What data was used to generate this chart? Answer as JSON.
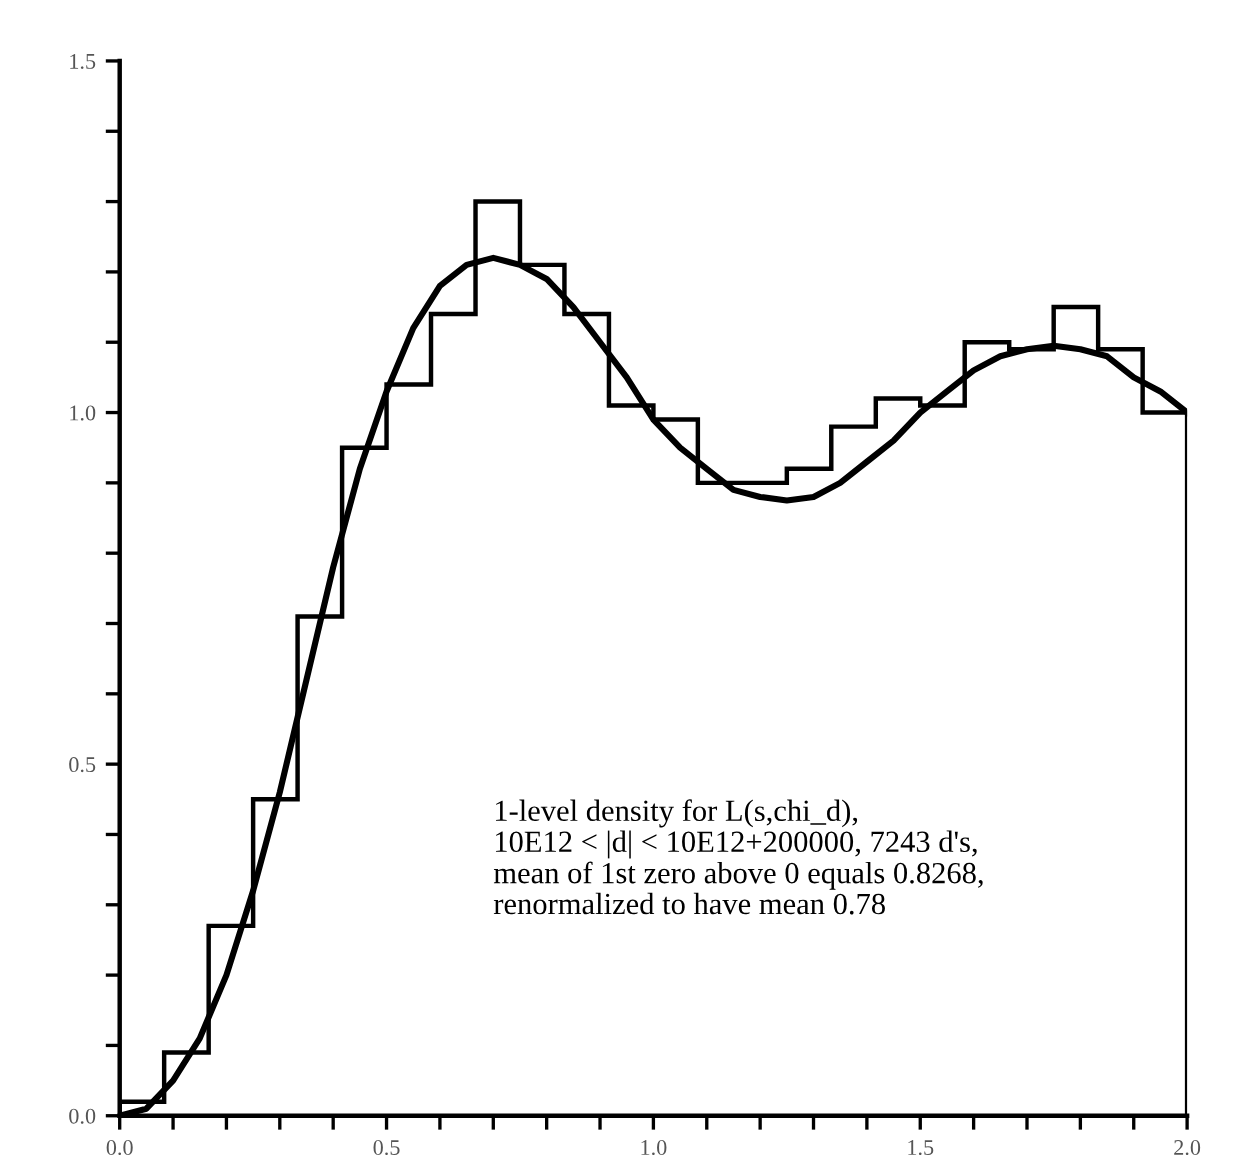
{
  "chart_data": {
    "type": "histogram",
    "bins": [
      0,
      0.0833,
      0.1667,
      0.25,
      0.3333,
      0.4167,
      0.5,
      0.5833,
      0.6667,
      0.75,
      0.8333,
      0.9167,
      1.0,
      1.0833,
      1.1667,
      1.25,
      1.3333,
      1.4167,
      1.5,
      1.5833,
      1.6667,
      1.75,
      1.8333,
      1.9167,
      2.0
    ],
    "values": [
      0.02,
      0.09,
      0.27,
      0.45,
      0.71,
      0.95,
      1.04,
      1.14,
      1.3,
      1.21,
      1.14,
      1.01,
      0.99,
      0.9,
      0.9,
      0.92,
      0.98,
      1.02,
      1.01,
      1.1,
      1.09,
      1.15,
      1.09,
      1.0
    ],
    "color": "#000000",
    "series": [
      {
        "type": "line",
        "color": "#000000",
        "x": [
          0,
          0.05,
          0.1,
          0.15,
          0.2,
          0.25,
          0.3,
          0.35,
          0.4,
          0.45,
          0.5,
          0.55,
          0.6,
          0.65,
          0.7,
          0.75,
          0.8,
          0.85,
          0.9,
          0.95,
          1.0,
          1.05,
          1.1,
          1.15,
          1.2,
          1.25,
          1.3,
          1.35,
          1.4,
          1.45,
          1.5,
          1.55,
          1.6,
          1.65,
          1.7,
          1.75,
          1.8,
          1.85,
          1.9,
          1.95,
          2.0
        ],
        "values": [
          0.0,
          0.01,
          0.05,
          0.11,
          0.2,
          0.32,
          0.46,
          0.62,
          0.78,
          0.92,
          1.03,
          1.12,
          1.18,
          1.21,
          1.22,
          1.21,
          1.19,
          1.15,
          1.1,
          1.05,
          0.99,
          0.95,
          0.92,
          0.89,
          0.88,
          0.875,
          0.88,
          0.9,
          0.93,
          0.96,
          1.0,
          1.03,
          1.06,
          1.08,
          1.09,
          1.095,
          1.09,
          1.08,
          1.05,
          1.03,
          1.0
        ]
      }
    ],
    "xlim": [
      0,
      2.0
    ],
    "ylim": [
      0,
      1.5
    ],
    "xticks": [
      {
        "value": 0,
        "label": "0.0"
      },
      {
        "value": 0.1,
        "label": null
      },
      {
        "value": 0.2,
        "label": null
      },
      {
        "value": 0.3,
        "label": null
      },
      {
        "value": 0.4,
        "label": null
      },
      {
        "value": 0.5,
        "label": "0.5"
      },
      {
        "value": 0.6,
        "label": null
      },
      {
        "value": 0.7,
        "label": null
      },
      {
        "value": 0.8,
        "label": null
      },
      {
        "value": 0.9,
        "label": null
      },
      {
        "value": 1.0,
        "label": "1.0"
      },
      {
        "value": 1.1,
        "label": null
      },
      {
        "value": 1.2,
        "label": null
      },
      {
        "value": 1.3,
        "label": null
      },
      {
        "value": 1.4,
        "label": null
      },
      {
        "value": 1.5,
        "label": "1.5"
      },
      {
        "value": 1.6,
        "label": null
      },
      {
        "value": 1.7,
        "label": null
      },
      {
        "value": 1.8,
        "label": null
      },
      {
        "value": 1.9,
        "label": null
      },
      {
        "value": 2.0,
        "label": "2.0"
      }
    ],
    "yticks": [
      {
        "value": 0,
        "label": "0.0"
      },
      {
        "value": 0.1,
        "label": null
      },
      {
        "value": 0.2,
        "label": null
      },
      {
        "value": 0.3,
        "label": null
      },
      {
        "value": 0.4,
        "label": null
      },
      {
        "value": 0.5,
        "label": "0.5"
      },
      {
        "value": 0.6,
        "label": null
      },
      {
        "value": 0.7,
        "label": null
      },
      {
        "value": 0.8,
        "label": null
      },
      {
        "value": 0.9,
        "label": null
      },
      {
        "value": 1.0,
        "label": "1.0"
      },
      {
        "value": 1.1,
        "label": null
      },
      {
        "value": 1.2,
        "label": null
      },
      {
        "value": 1.3,
        "label": null
      },
      {
        "value": 1.4,
        "label": null
      },
      {
        "value": 1.5,
        "label": "1.5"
      }
    ],
    "annotations": [
      "1-level density for L(s,chi_d),\n10E12 < |d| < 10E12+200000, 7243 d's,\nmean of 1st zero above 0 equals 0.8268,\nrenormalized to have mean 0.78"
    ],
    "grid": false,
    "legend": false
  }
}
